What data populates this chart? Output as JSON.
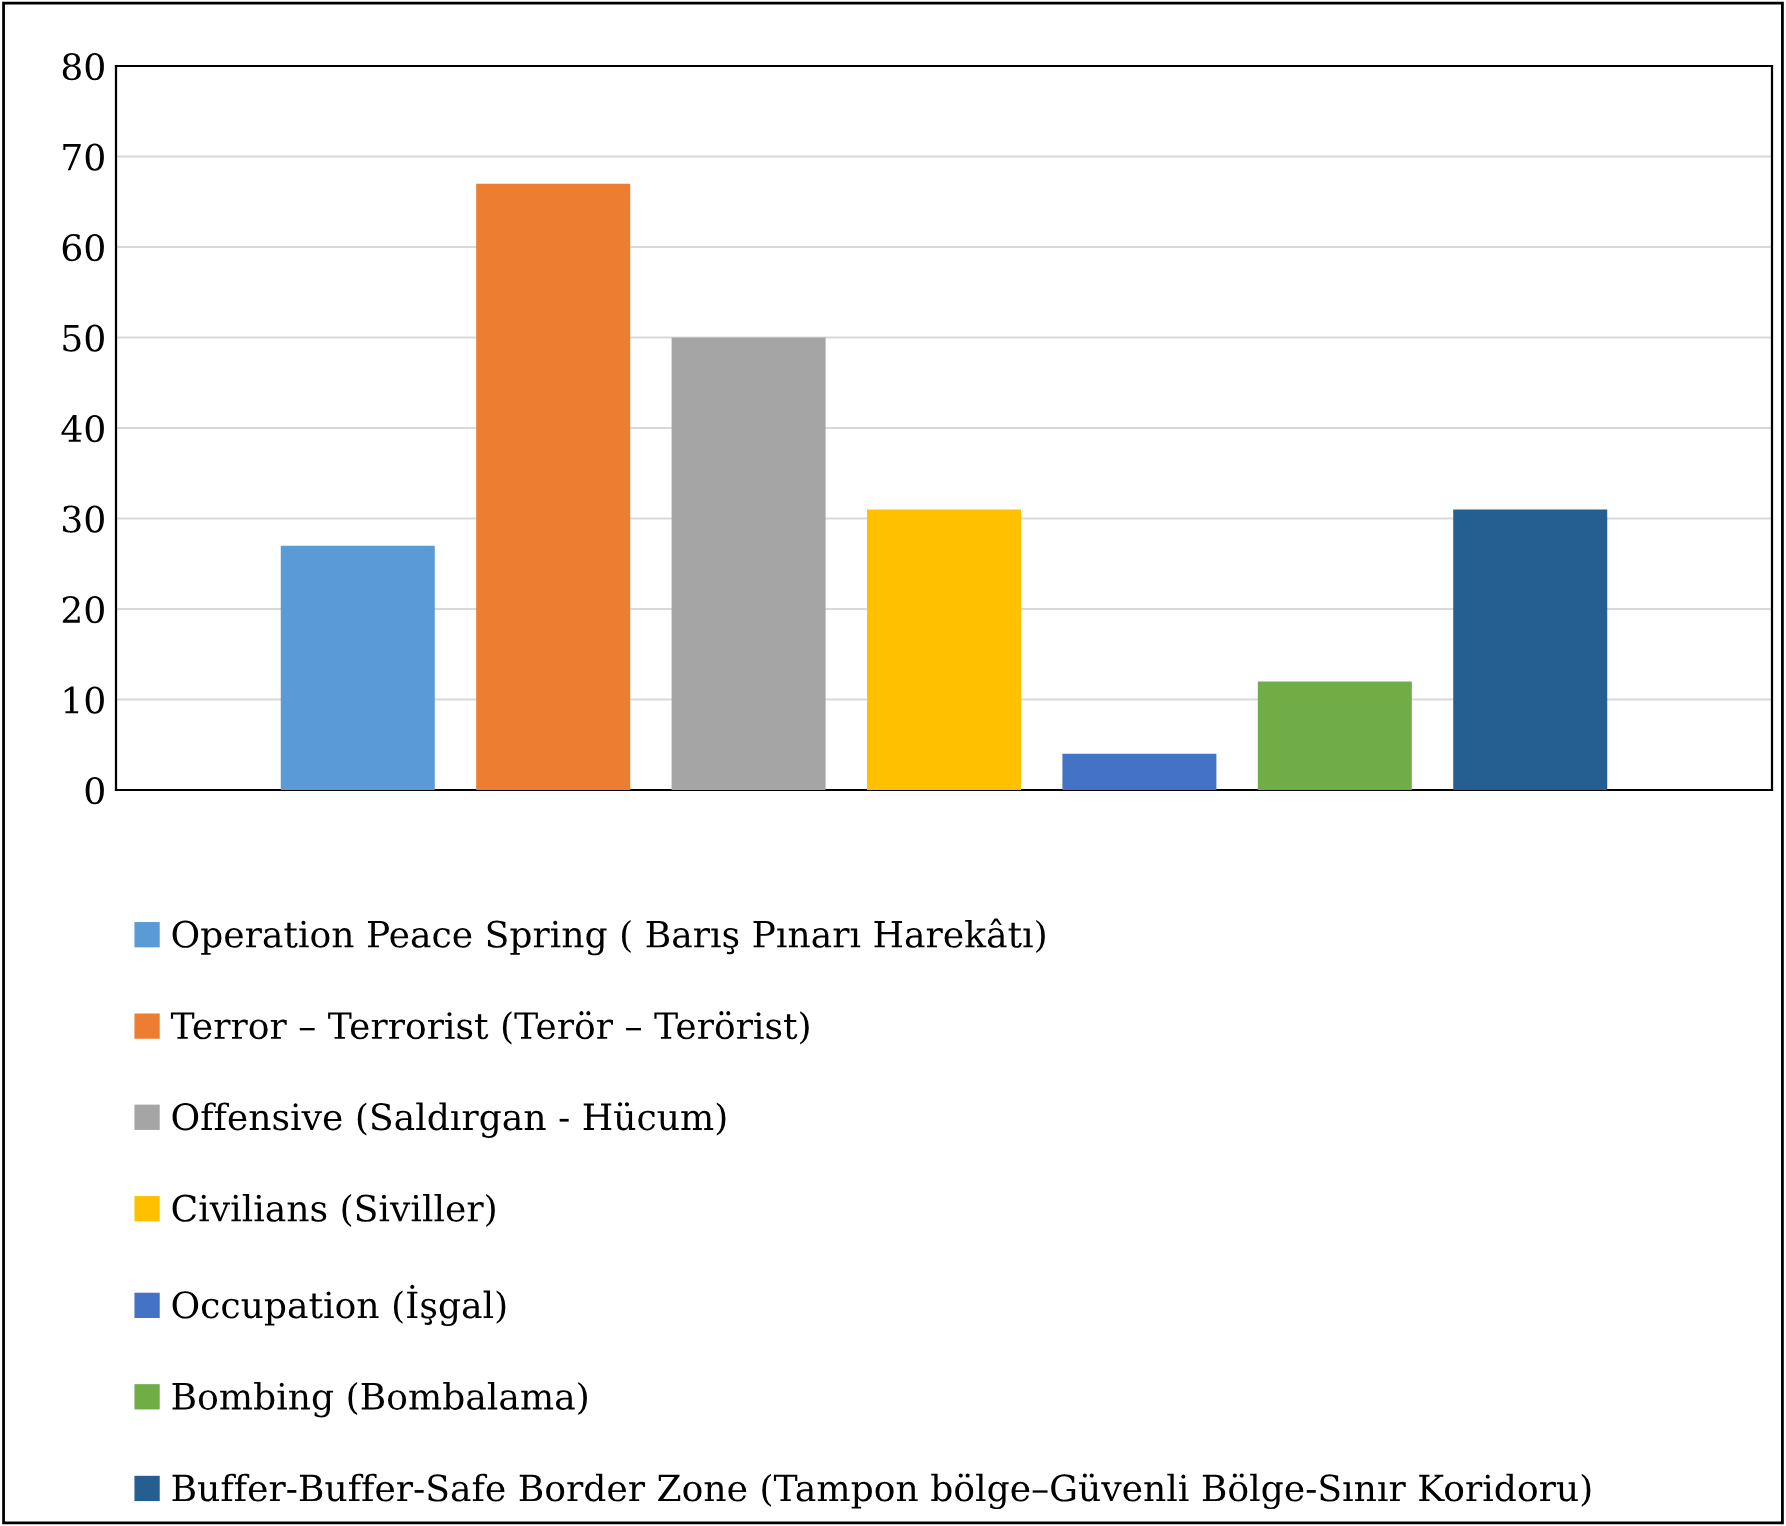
{
  "chart_data": {
    "type": "bar",
    "categories": [
      null
    ],
    "series": [
      {
        "name": "Operation Peace Spring ( Barış Pınarı Harekâtı)",
        "color": "#5b9bd5",
        "values": [
          27
        ]
      },
      {
        "name": "Terror – Terrorist (Terör – Terörist)",
        "color": "#ed7d31",
        "values": [
          67
        ]
      },
      {
        "name": "Offensive (Saldırgan - Hücum)",
        "color": "#a5a5a5",
        "values": [
          50
        ]
      },
      {
        "name": "Civilians (Siviller)",
        "color": "#ffc000",
        "values": [
          31
        ]
      },
      {
        "name": "Occupation (İşgal)",
        "color": "#4472c4",
        "values": [
          4
        ]
      },
      {
        "name": "Bombing (Bombalama)",
        "color": "#70ad47",
        "values": [
          12
        ]
      },
      {
        "name": "Buffer-Buffer-Safe Border Zone (Tampon bölge–Güvenli Bölge-Sınır Koridoru)",
        "color": "#255e91",
        "values": [
          31
        ]
      }
    ],
    "ylim": [
      0,
      80
    ],
    "yticks": [
      0,
      10,
      20,
      30,
      40,
      50,
      60,
      70,
      80
    ],
    "grid": "y",
    "legend": "bottom"
  }
}
